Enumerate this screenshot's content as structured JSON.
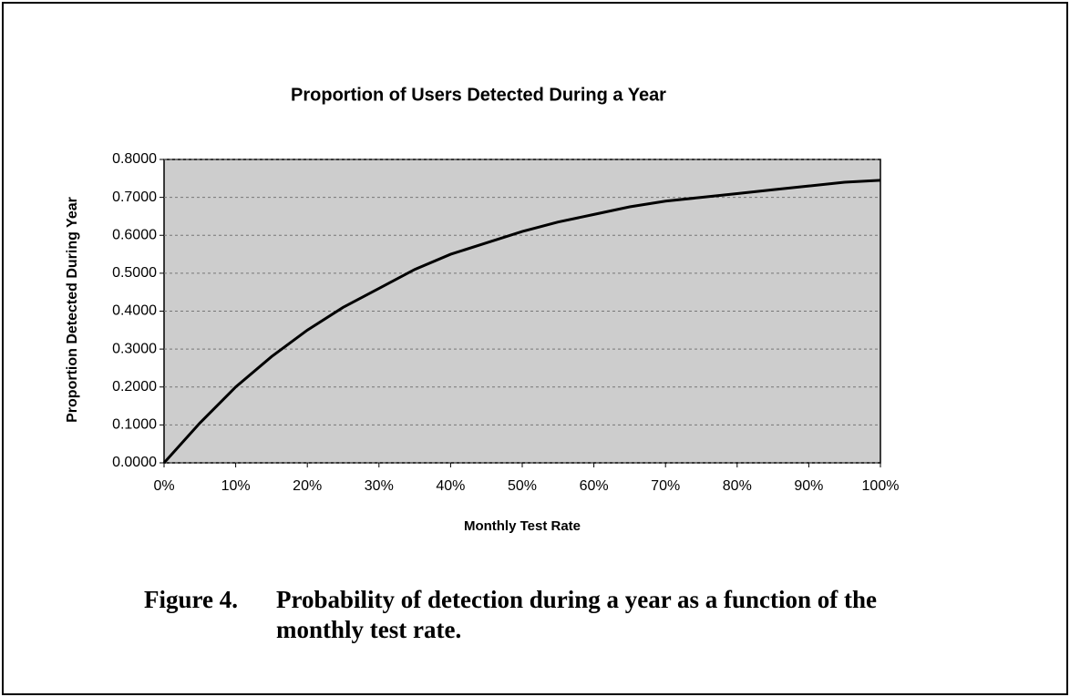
{
  "chart_data": {
    "type": "line",
    "title": "Proportion of Users Detected During a Year",
    "xlabel": "Monthly Test Rate",
    "ylabel": "Proportion Detected During Year",
    "x": [
      0,
      5,
      10,
      15,
      20,
      25,
      30,
      35,
      40,
      45,
      50,
      55,
      60,
      65,
      70,
      75,
      80,
      85,
      90,
      95,
      100
    ],
    "series": [
      {
        "color": "#000000",
        "values": [
          0,
          0.105,
          0.2,
          0.28,
          0.35,
          0.41,
          0.46,
          0.51,
          0.55,
          0.58,
          0.61,
          0.635,
          0.655,
          0.675,
          0.69,
          0.7,
          0.71,
          0.72,
          0.73,
          0.74,
          0.745
        ]
      }
    ],
    "xlim": [
      0,
      100
    ],
    "xticks": [
      {
        "value": 0,
        "label": "0%"
      },
      {
        "value": 10,
        "label": "10%"
      },
      {
        "value": 20,
        "label": "20%"
      },
      {
        "value": 30,
        "label": "30%"
      },
      {
        "value": 40,
        "label": "40%"
      },
      {
        "value": 50,
        "label": "50%"
      },
      {
        "value": 60,
        "label": "60%"
      },
      {
        "value": 70,
        "label": "70%"
      },
      {
        "value": 80,
        "label": "80%"
      },
      {
        "value": 90,
        "label": "90%"
      },
      {
        "value": 100,
        "label": "100%"
      }
    ],
    "ylim": [
      0,
      0.8
    ],
    "yticks": [
      {
        "value": 0,
        "label": "0.0000"
      },
      {
        "value": 0.1,
        "label": "0.1000"
      },
      {
        "value": 0.2,
        "label": "0.2000"
      },
      {
        "value": 0.3,
        "label": "0.3000"
      },
      {
        "value": 0.4,
        "label": "0.4000"
      },
      {
        "value": 0.5,
        "label": "0.5000"
      },
      {
        "value": 0.6,
        "label": "0.6000"
      },
      {
        "value": 0.7,
        "label": "0.7000"
      },
      {
        "value": 0.8,
        "label": "0.8000"
      }
    ],
    "grid": true,
    "plot_background": "#cdcdcd"
  },
  "caption": {
    "label": "Figure 4.",
    "lines": [
      "Probability of detection during a year as a function of the",
      "monthly test rate."
    ]
  }
}
